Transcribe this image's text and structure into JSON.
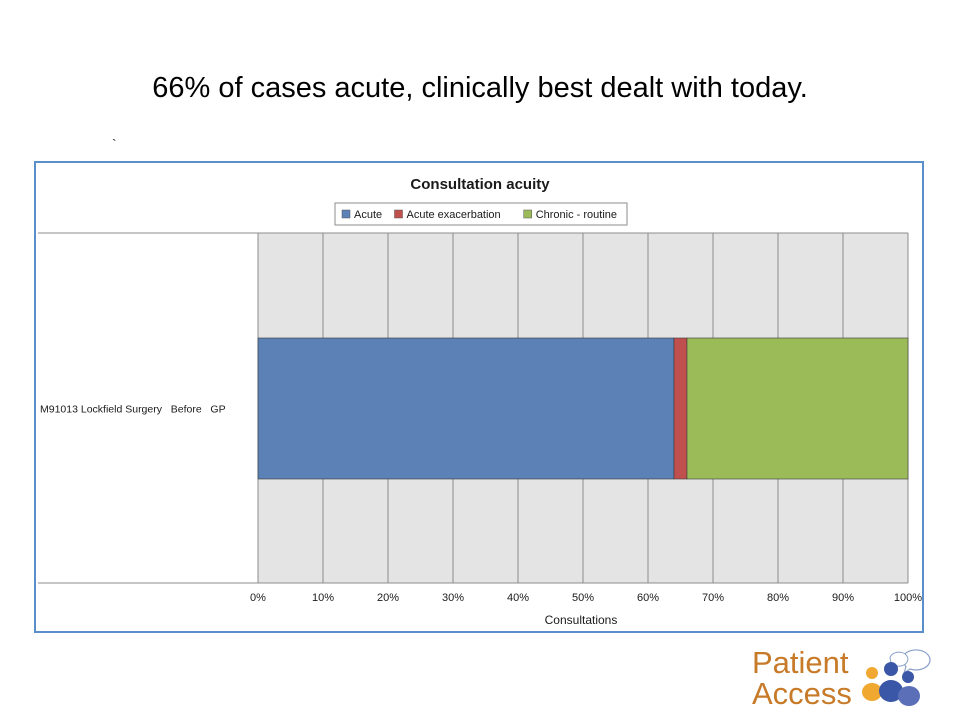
{
  "slide": {
    "title": "66% of cases acute, clinically best dealt with today.",
    "mark": "`"
  },
  "chart_data": {
    "type": "bar",
    "orientation": "horizontal",
    "stacked": true,
    "percent": true,
    "title": "Consultation acuity",
    "xlabel": "Consultations",
    "ylabel": "",
    "categories": [
      "M91013 Lockfield Surgery   Before   GP"
    ],
    "series": [
      {
        "name": "Acute",
        "values": [
          64
        ],
        "color": "#5b81b6"
      },
      {
        "name": "Acute exacerbation",
        "values": [
          2
        ],
        "color": "#c0504d"
      },
      {
        "name": "Chronic - routine",
        "values": [
          34
        ],
        "color": "#9bbb59"
      }
    ],
    "xlim": [
      0,
      100
    ],
    "xticks": [
      "0%",
      "10%",
      "20%",
      "30%",
      "40%",
      "50%",
      "60%",
      "70%",
      "80%",
      "90%",
      "100%"
    ],
    "legend": "top",
    "grid": true,
    "plot_background": "#e4e4e4"
  },
  "logo": {
    "line1": "Patient",
    "line2": "Access",
    "colors": {
      "text": "#c77a28",
      "blue": "#3a56a6",
      "orange": "#f0a830"
    }
  }
}
